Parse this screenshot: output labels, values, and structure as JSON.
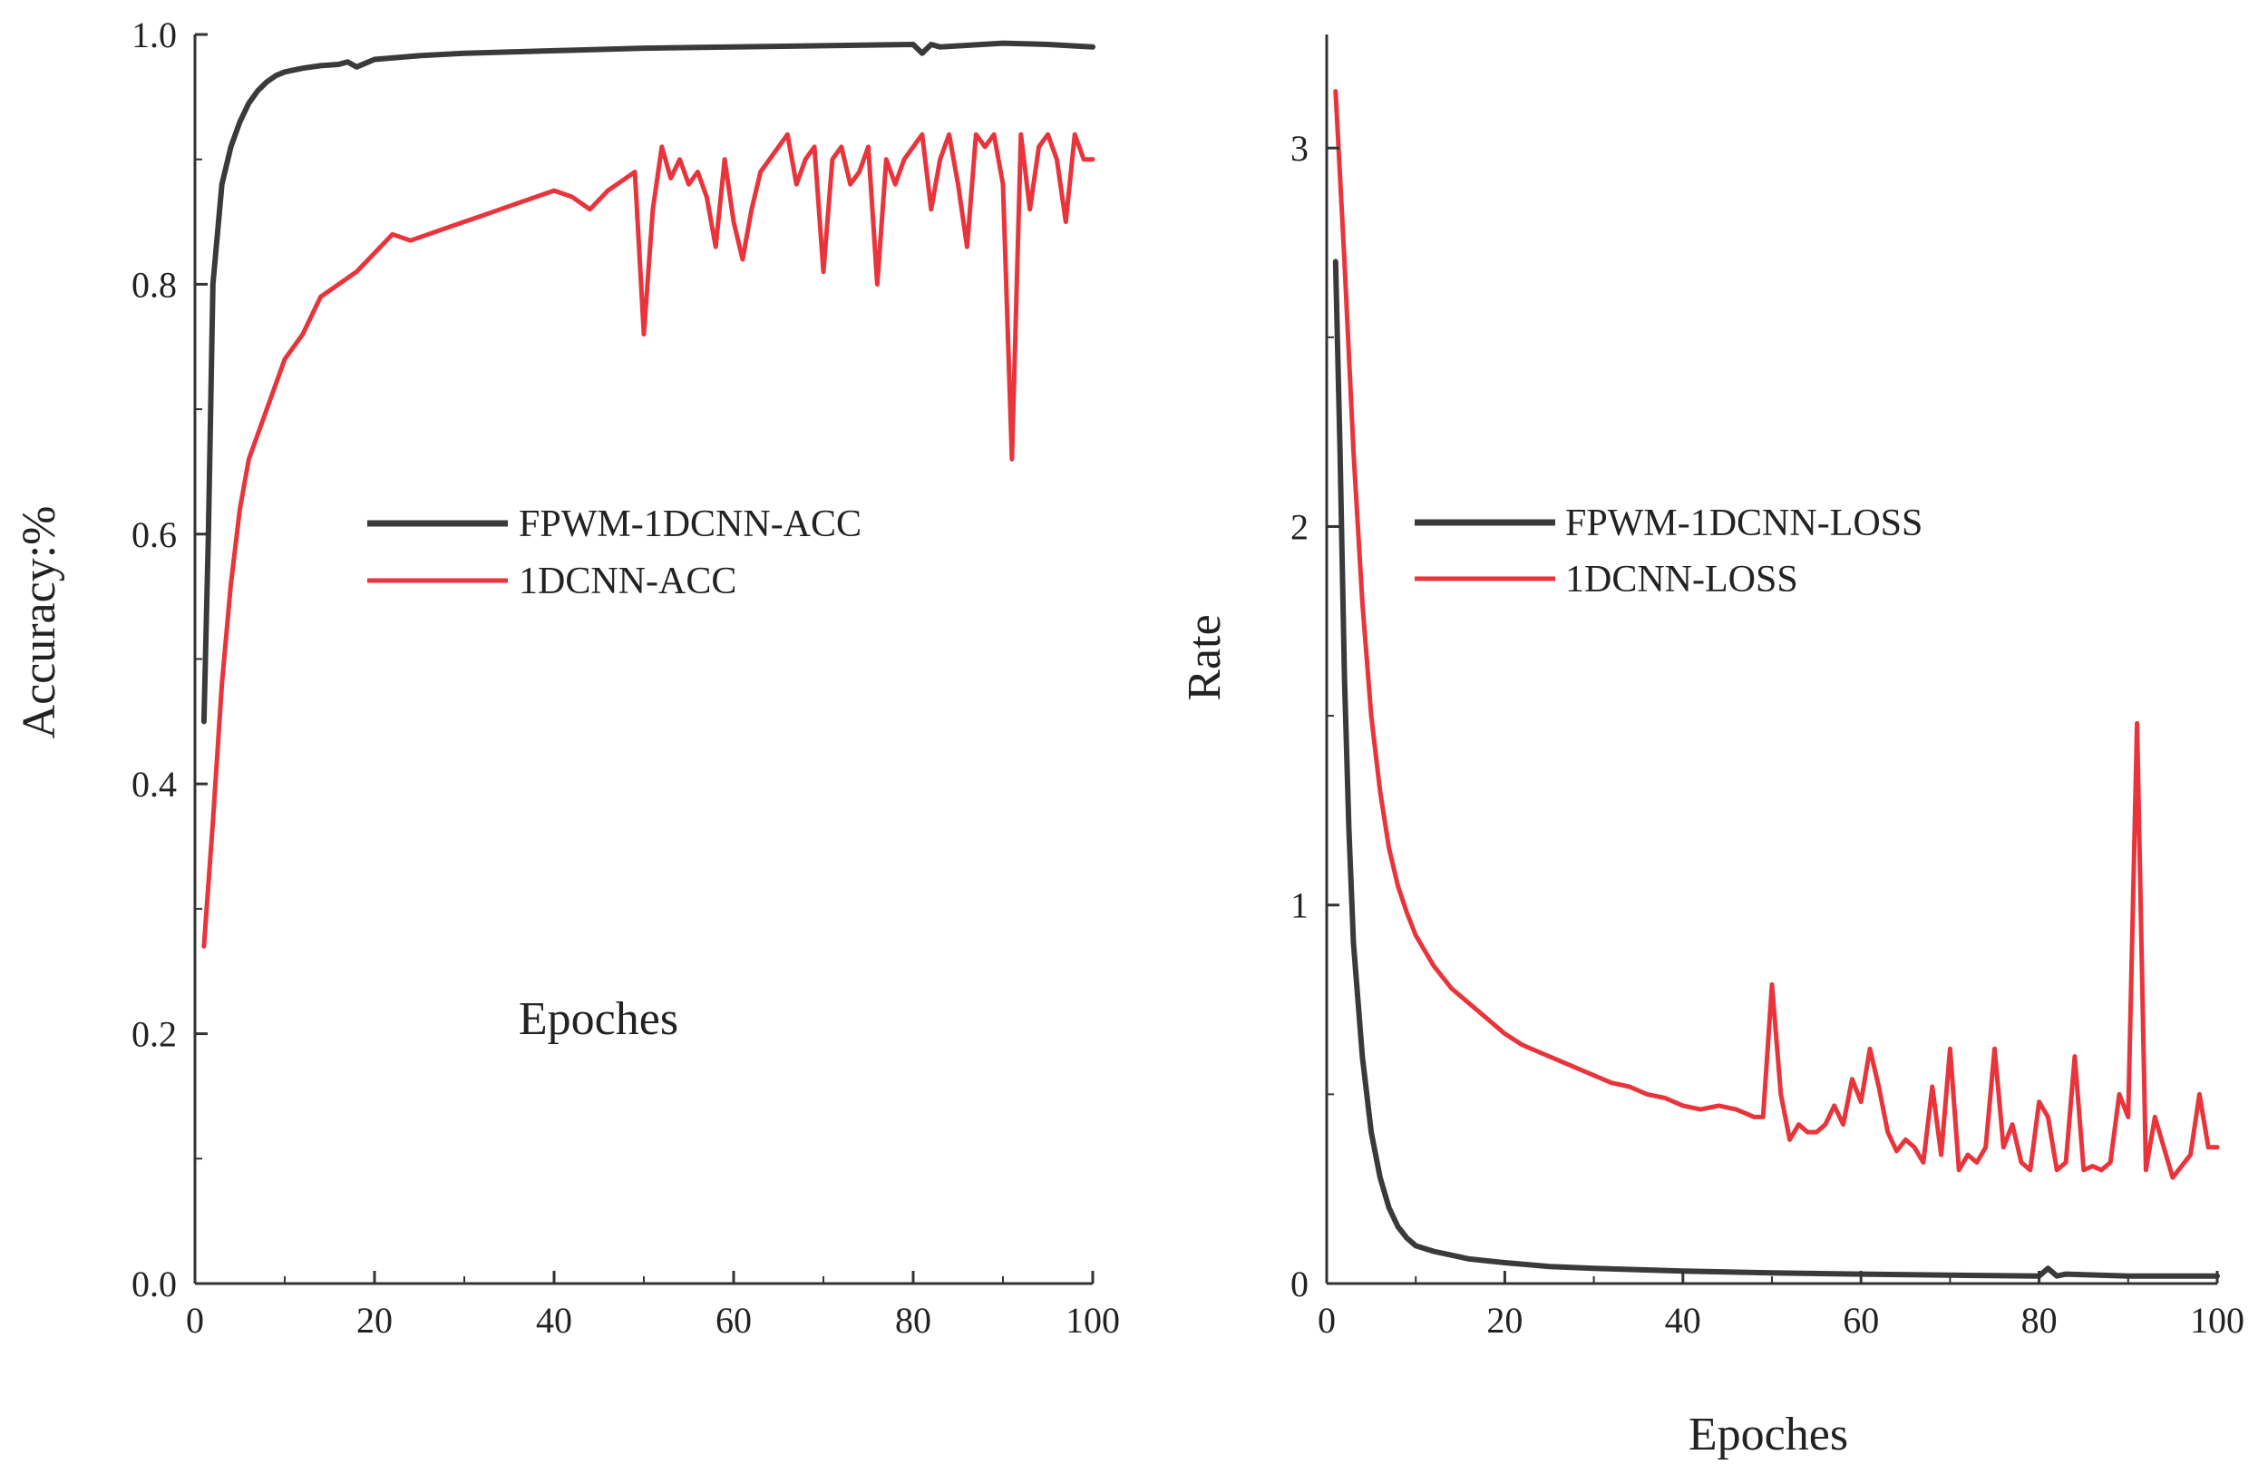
{
  "chart_data": [
    {
      "type": "line",
      "name": "accuracy",
      "xlabel": "Epoches",
      "ylabel": "Accuracy:%",
      "xlim": [
        0,
        100
      ],
      "ylim": [
        0,
        1.0
      ],
      "xticks": [
        0,
        20,
        40,
        60,
        80,
        100
      ],
      "xtick_labels": [
        "0",
        "20",
        "40",
        "60",
        "80",
        "100"
      ],
      "yticks": [
        0,
        0.2,
        0.4,
        0.6,
        0.8,
        1.0
      ],
      "ytick_labels": [
        "0.0",
        "0.2",
        "0.4",
        "0.6",
        "0.8",
        "1.0"
      ],
      "legend_position": "center",
      "series": [
        {
          "name": "FPWM-1DCNN-ACC",
          "color": "#3a3a3a",
          "x": [
            1,
            1.5,
            2,
            3,
            4,
            5,
            6,
            7,
            8,
            9,
            10,
            12,
            14,
            16,
            17,
            18,
            20,
            25,
            30,
            40,
            50,
            60,
            70,
            80,
            81,
            82,
            83,
            90,
            95,
            100
          ],
          "y": [
            0.45,
            0.6,
            0.8,
            0.88,
            0.91,
            0.93,
            0.945,
            0.955,
            0.962,
            0.967,
            0.97,
            0.973,
            0.975,
            0.976,
            0.978,
            0.974,
            0.98,
            0.983,
            0.985,
            0.987,
            0.989,
            0.99,
            0.991,
            0.992,
            0.985,
            0.992,
            0.99,
            0.993,
            0.992,
            0.99
          ]
        },
        {
          "name": "1DCNN-ACC",
          "color": "#e8343a",
          "x": [
            1,
            2,
            3,
            4,
            5,
            6,
            8,
            10,
            12,
            14,
            16,
            18,
            20,
            22,
            24,
            26,
            28,
            30,
            32,
            34,
            36,
            38,
            40,
            42,
            44,
            46,
            48,
            49,
            50,
            51,
            52,
            53,
            54,
            55,
            56,
            57,
            58,
            59,
            60,
            61,
            62,
            63,
            64,
            65,
            66,
            67,
            68,
            69,
            70,
            71,
            72,
            73,
            74,
            75,
            76,
            77,
            78,
            79,
            80,
            81,
            82,
            83,
            84,
            85,
            86,
            87,
            88,
            89,
            90,
            91,
            92,
            93,
            94,
            95,
            96,
            97,
            98,
            99,
            100
          ],
          "y": [
            0.27,
            0.37,
            0.48,
            0.56,
            0.62,
            0.66,
            0.7,
            0.74,
            0.76,
            0.79,
            0.8,
            0.81,
            0.825,
            0.84,
            0.835,
            0.84,
            0.845,
            0.85,
            0.855,
            0.86,
            0.865,
            0.87,
            0.875,
            0.87,
            0.86,
            0.875,
            0.885,
            0.89,
            0.76,
            0.86,
            0.91,
            0.885,
            0.9,
            0.88,
            0.89,
            0.87,
            0.83,
            0.9,
            0.85,
            0.82,
            0.86,
            0.89,
            0.9,
            0.91,
            0.92,
            0.88,
            0.9,
            0.91,
            0.81,
            0.9,
            0.91,
            0.88,
            0.89,
            0.91,
            0.8,
            0.9,
            0.88,
            0.9,
            0.91,
            0.92,
            0.86,
            0.9,
            0.92,
            0.88,
            0.83,
            0.92,
            0.91,
            0.92,
            0.88,
            0.66,
            0.92,
            0.86,
            0.91,
            0.92,
            0.9,
            0.85,
            0.92,
            0.9,
            0.9
          ]
        }
      ]
    },
    {
      "type": "line",
      "name": "loss",
      "xlabel": "Epoches",
      "ylabel": "Rate",
      "xlim": [
        0,
        100
      ],
      "ylim": [
        0,
        3.3
      ],
      "xticks": [
        0,
        20,
        40,
        60,
        80,
        100
      ],
      "xtick_labels": [
        "0",
        "20",
        "40",
        "60",
        "80",
        "100"
      ],
      "yticks": [
        0,
        1,
        2,
        3
      ],
      "ytick_labels": [
        "0",
        "1",
        "2",
        "3"
      ],
      "legend_position": "upper-center",
      "series": [
        {
          "name": "FPWM-1DCNN-LOSS",
          "color": "#3a3a3a",
          "x": [
            1,
            1.5,
            2,
            2.5,
            3,
            4,
            5,
            6,
            7,
            8,
            9,
            10,
            12,
            14,
            16,
            20,
            25,
            30,
            40,
            50,
            60,
            70,
            80,
            81,
            82,
            83,
            90,
            100
          ],
          "y": [
            2.7,
            2.2,
            1.6,
            1.2,
            0.9,
            0.6,
            0.4,
            0.28,
            0.2,
            0.15,
            0.12,
            0.1,
            0.085,
            0.075,
            0.065,
            0.055,
            0.045,
            0.04,
            0.033,
            0.028,
            0.025,
            0.022,
            0.02,
            0.04,
            0.02,
            0.025,
            0.02,
            0.02
          ]
        },
        {
          "name": "1DCNN-LOSS",
          "color": "#e8343a",
          "x": [
            1,
            2,
            3,
            4,
            5,
            6,
            7,
            8,
            9,
            10,
            12,
            14,
            16,
            18,
            20,
            22,
            24,
            26,
            28,
            30,
            32,
            34,
            36,
            38,
            40,
            42,
            44,
            46,
            48,
            49,
            50,
            51,
            52,
            53,
            54,
            55,
            56,
            57,
            58,
            59,
            60,
            61,
            62,
            63,
            64,
            65,
            66,
            67,
            68,
            69,
            70,
            71,
            72,
            73,
            74,
            75,
            76,
            77,
            78,
            79,
            80,
            81,
            82,
            83,
            84,
            85,
            86,
            87,
            88,
            89,
            90,
            91,
            92,
            93,
            94,
            95,
            96,
            97,
            98,
            99,
            100
          ],
          "y": [
            3.15,
            2.7,
            2.2,
            1.8,
            1.5,
            1.3,
            1.15,
            1.05,
            0.98,
            0.92,
            0.84,
            0.78,
            0.74,
            0.7,
            0.66,
            0.63,
            0.61,
            0.59,
            0.57,
            0.55,
            0.53,
            0.52,
            0.5,
            0.49,
            0.47,
            0.46,
            0.47,
            0.46,
            0.44,
            0.44,
            0.79,
            0.5,
            0.38,
            0.42,
            0.4,
            0.4,
            0.42,
            0.47,
            0.42,
            0.54,
            0.48,
            0.62,
            0.52,
            0.4,
            0.35,
            0.38,
            0.36,
            0.32,
            0.52,
            0.34,
            0.62,
            0.3,
            0.34,
            0.32,
            0.36,
            0.62,
            0.36,
            0.42,
            0.32,
            0.3,
            0.48,
            0.44,
            0.3,
            0.32,
            0.6,
            0.3,
            0.31,
            0.3,
            0.32,
            0.5,
            0.44,
            1.48,
            0.3,
            0.44,
            0.36,
            0.28,
            0.31,
            0.34,
            0.5,
            0.36,
            0.36
          ]
        }
      ]
    }
  ]
}
